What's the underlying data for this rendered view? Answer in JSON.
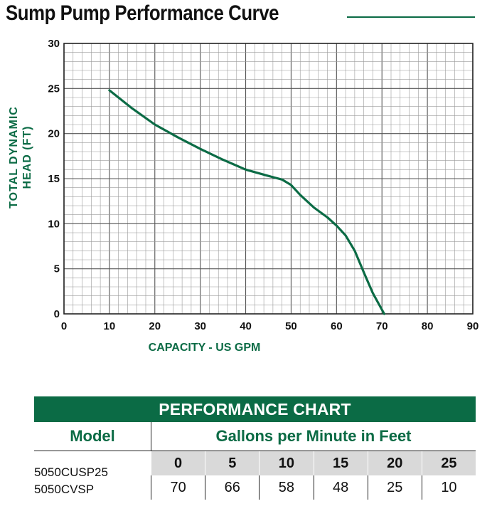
{
  "title": "Sump Pump Performance Curve",
  "colors": {
    "accent": "#0b6b45",
    "grid": "#9a9a9a",
    "header_cell": "#d9d9d9"
  },
  "chart_data": {
    "type": "line",
    "xlabel": "CAPACITY - US GPM",
    "ylabel_lines": [
      "TOTAL DYNAMIC",
      "HEAD (FT)"
    ],
    "xlim": [
      0,
      90
    ],
    "ylim": [
      0,
      30
    ],
    "xticks": [
      0,
      10,
      20,
      30,
      40,
      50,
      60,
      70,
      80,
      90
    ],
    "yticks": [
      0,
      5,
      10,
      15,
      20,
      25,
      30
    ],
    "grid": true,
    "series": [
      {
        "x": [
          10,
          15,
          20,
          25,
          30,
          35,
          40,
          45,
          48,
          50,
          52,
          55,
          58,
          60,
          62,
          64,
          66,
          68,
          70.5
        ],
        "y": [
          24.8,
          22.8,
          21.0,
          19.6,
          18.3,
          17.1,
          16.0,
          15.3,
          14.9,
          14.3,
          13.2,
          11.8,
          10.7,
          9.8,
          8.7,
          7.0,
          4.6,
          2.3,
          0
        ]
      }
    ]
  },
  "table": {
    "banner": "PERFORMANCE CHART",
    "model_header": "Model",
    "gpm_header": "Gallons per Minute in Feet",
    "models": [
      "5050CUSP25",
      "5050CVSP"
    ],
    "heads": [
      "0",
      "5",
      "10",
      "15",
      "20",
      "25"
    ],
    "gpm": [
      "70",
      "66",
      "58",
      "48",
      "25",
      "10"
    ]
  }
}
